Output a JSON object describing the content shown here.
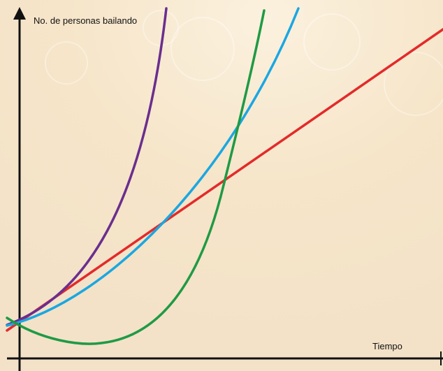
{
  "y_axis_label": "No. de personas bailando",
  "x_axis_label": "Tiempo"
}
